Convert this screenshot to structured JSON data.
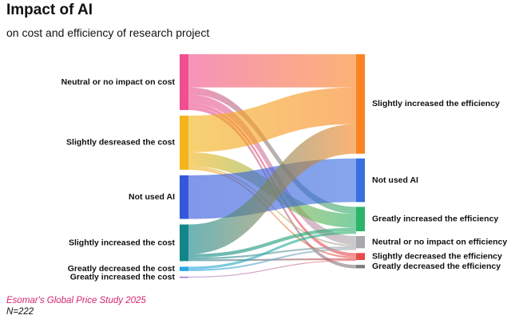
{
  "chart_data": {
    "type": "sankey",
    "title": "Impact of AI",
    "subtitle": "on cost and efficiency of research project",
    "source": "Esomar's Global Price Study 2025",
    "n_label": "N=222",
    "sources": [
      {
        "id": "s_neutral",
        "label": "Neutral or no impact on cost",
        "value": 32,
        "color": "#f0508f"
      },
      {
        "id": "s_sdec",
        "label": "Slightly desreased the cost",
        "value": 31,
        "color": "#f2b51c"
      },
      {
        "id": "s_notused",
        "label": "Not used AI",
        "value": 25,
        "color": "#3557dc"
      },
      {
        "id": "s_sinc",
        "label": "Slightly increased the cost",
        "value": 21,
        "color": "#13868b"
      },
      {
        "id": "s_gdec",
        "label": "Greatly decreased the cost",
        "value": 2.5,
        "color": "#2aa8e3"
      },
      {
        "id": "s_ginc",
        "label": "Greatly increased the cost",
        "value": 0.5,
        "color": "#9a6ed0"
      }
    ],
    "targets": [
      {
        "id": "t_sinc",
        "label": "Slightly increased the efficiency",
        "value": 57,
        "color": "#f98421"
      },
      {
        "id": "t_notused",
        "label": "Not used AI",
        "value": 25,
        "color": "#3b6fe0"
      },
      {
        "id": "t_ginc",
        "label": "Greatly increased the efficiency",
        "value": 14,
        "color": "#2db36a"
      },
      {
        "id": "t_neutral",
        "label": "Neutral or no impact on efficiency",
        "value": 7,
        "color": "#a9a9ad"
      },
      {
        "id": "t_sdec",
        "label": "Slightly decreased the efficiency",
        "value": 4,
        "color": "#e84b4b"
      },
      {
        "id": "t_gdec",
        "label": "Greatly decreased the efficiency",
        "value": 2,
        "color": "#7d7d80"
      }
    ],
    "links": [
      {
        "source": "s_neutral",
        "target": "t_sinc",
        "value": 19
      },
      {
        "source": "s_neutral",
        "target": "t_ginc",
        "value": 4
      },
      {
        "source": "s_neutral",
        "target": "t_neutral",
        "value": 5
      },
      {
        "source": "s_neutral",
        "target": "t_sdec",
        "value": 2
      },
      {
        "source": "s_neutral",
        "target": "t_gdec",
        "value": 2
      },
      {
        "source": "s_sdec",
        "target": "t_sinc",
        "value": 21
      },
      {
        "source": "s_sdec",
        "target": "t_ginc",
        "value": 8
      },
      {
        "source": "s_sdec",
        "target": "t_neutral",
        "value": 1
      },
      {
        "source": "s_sdec",
        "target": "t_sdec",
        "value": 1
      },
      {
        "source": "s_notused",
        "target": "t_notused",
        "value": 25
      },
      {
        "source": "s_sinc",
        "target": "t_sinc",
        "value": 17
      },
      {
        "source": "s_sinc",
        "target": "t_ginc",
        "value": 2
      },
      {
        "source": "s_sinc",
        "target": "t_neutral",
        "value": 1
      },
      {
        "source": "s_sinc",
        "target": "t_sdec",
        "value": 1
      },
      {
        "source": "s_gdec",
        "target": "t_ginc",
        "value": 1.5
      },
      {
        "source": "s_gdec",
        "target": "t_neutral",
        "value": 1
      },
      {
        "source": "s_ginc",
        "target": "t_sdec",
        "value": 0.5
      }
    ]
  }
}
